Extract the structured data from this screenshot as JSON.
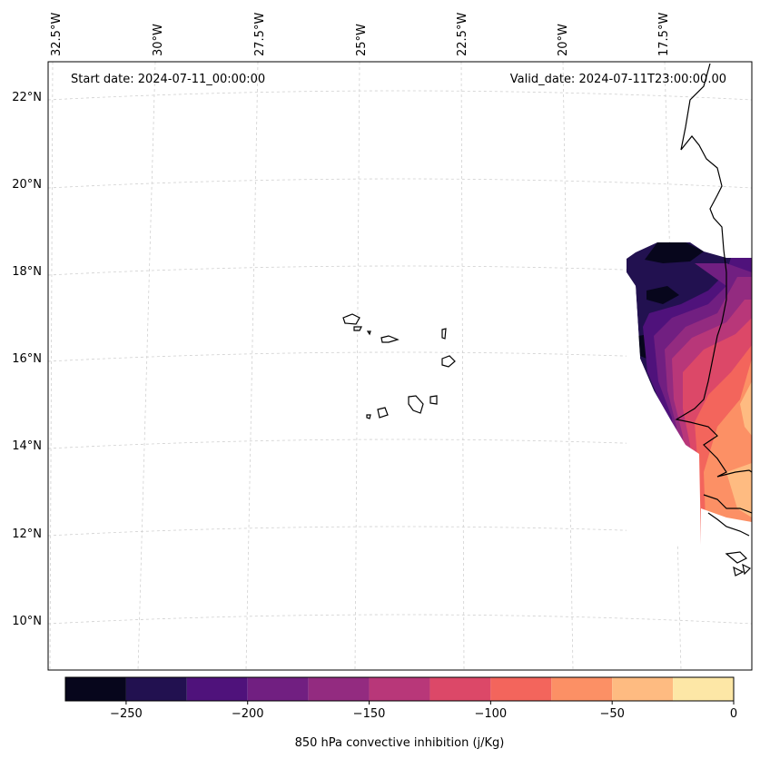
{
  "map": {
    "start_date_label": "Start date: 2024-07-11_00:00:00",
    "valid_date_label": "Valid_date: 2024-07-11T23:00:00.00",
    "lon_labels": [
      "32.5°W",
      "30°W",
      "27.5°W",
      "25°W",
      "22.5°W",
      "20°W",
      "17.5°W"
    ],
    "lat_labels": [
      "22°N",
      "20°N",
      "18°N",
      "16°N",
      "14°N",
      "12°N",
      "10°N"
    ]
  },
  "colorbar": {
    "label": "850 hPa convective inhibition (j/Kg)",
    "tick_labels": [
      "−250",
      "−200",
      "−150",
      "−100",
      "−50",
      "0"
    ],
    "levels": [
      -275,
      -250,
      -225,
      -200,
      -175,
      -150,
      -125,
      -100,
      -75,
      -50,
      -25,
      0
    ],
    "colors": [
      "#07061c",
      "#221150",
      "#4f127b",
      "#711f81",
      "#932b80",
      "#b83779",
      "#dc4868",
      "#f3655c",
      "#fc9065",
      "#febb81",
      "#fde7a6"
    ]
  },
  "colors": {
    "coastline": "#000000",
    "gridline": "#d0d0d0",
    "frame": "#000000"
  }
}
